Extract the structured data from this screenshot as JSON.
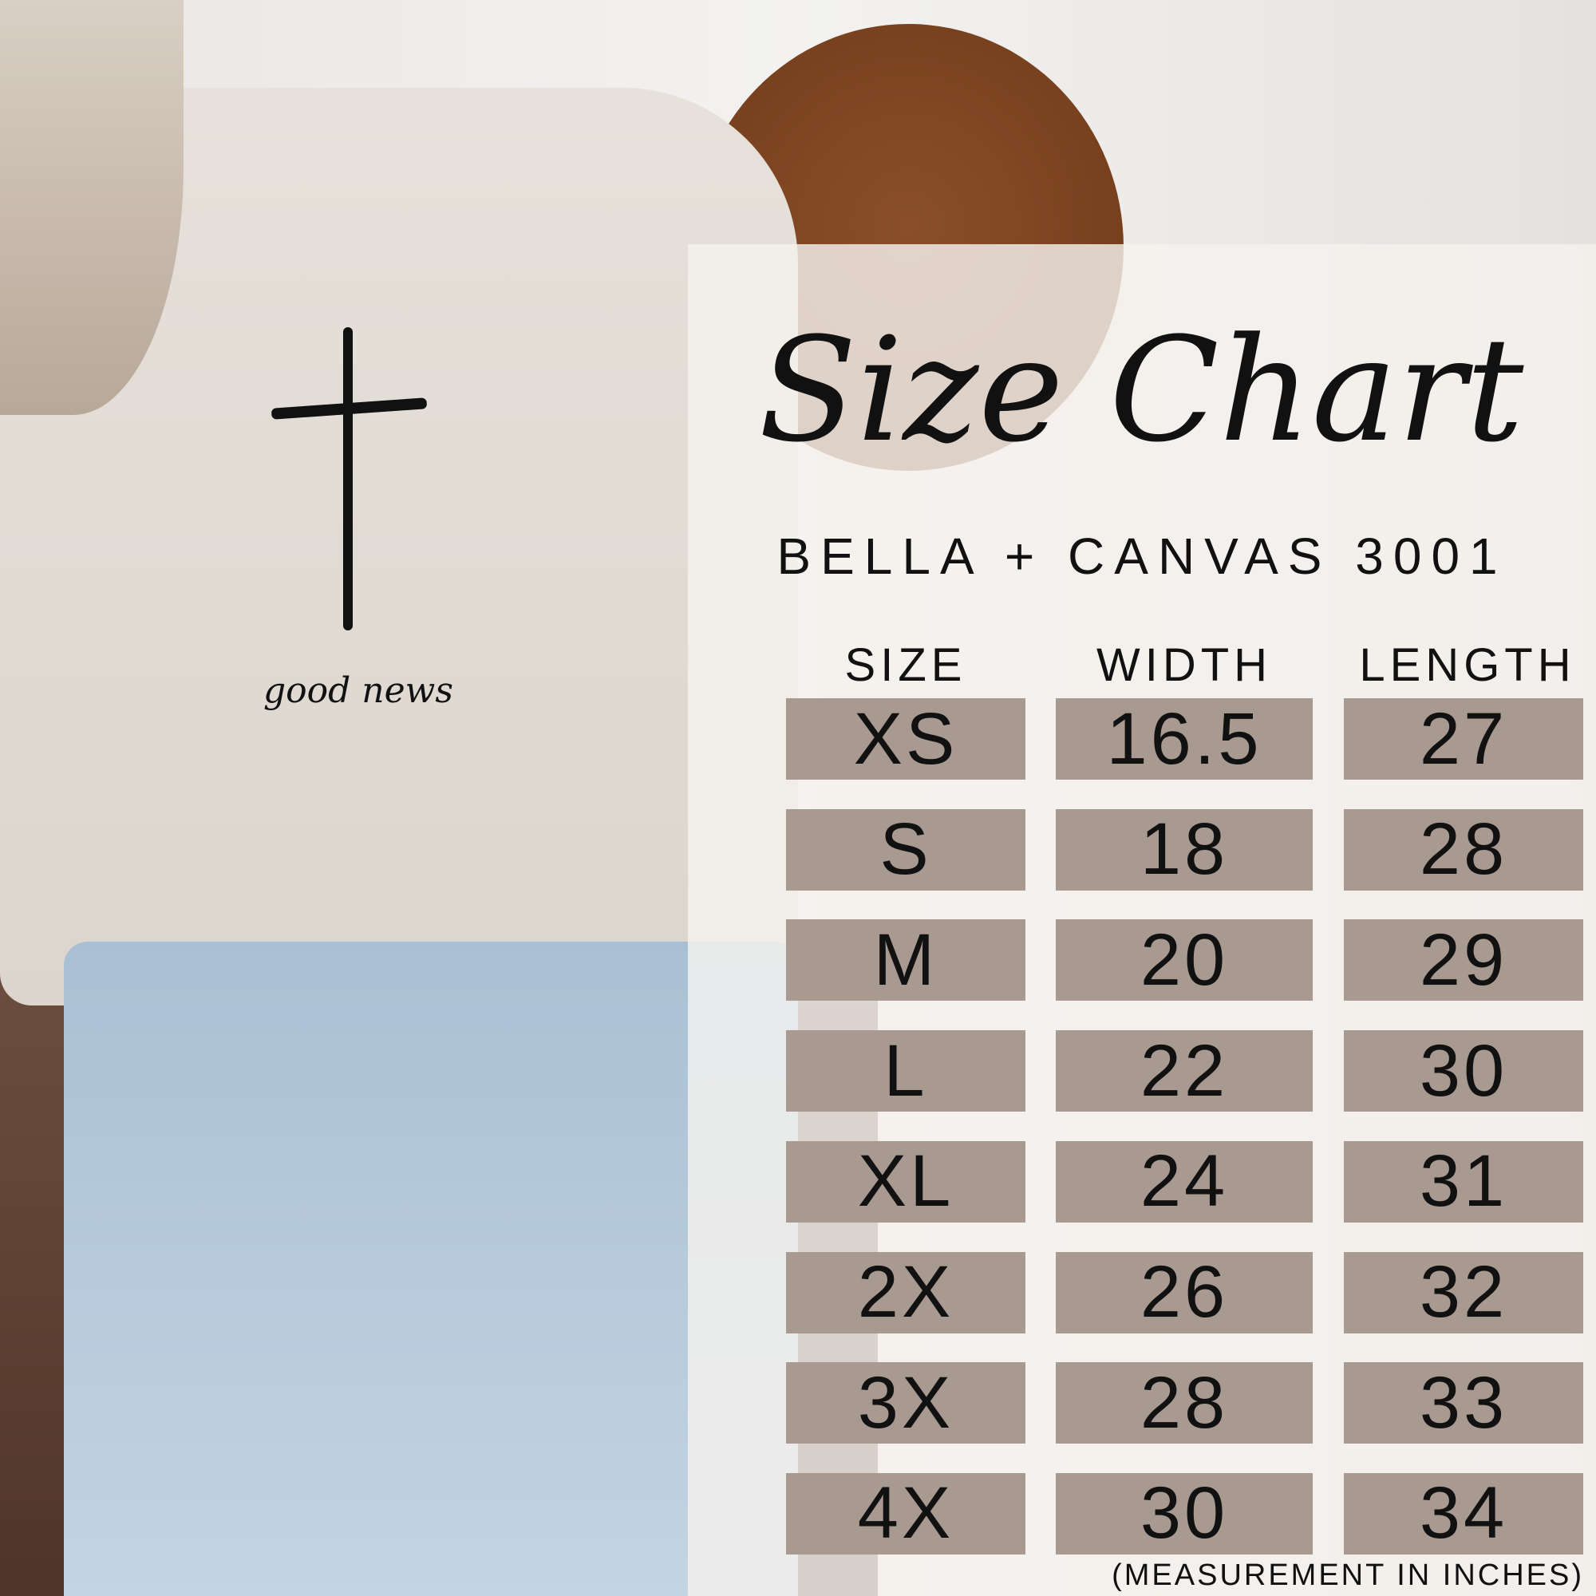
{
  "photo": {
    "shirt_print": "good news"
  },
  "title": "Size Chart",
  "brand": "BELLA + CANVAS 3001",
  "headers": [
    "SIZE",
    "WIDTH",
    "LENGTH"
  ],
  "rows": [
    {
      "size": "XS",
      "width": "16.5",
      "length": "27"
    },
    {
      "size": "S",
      "width": "18",
      "length": "28"
    },
    {
      "size": "M",
      "width": "20",
      "length": "29"
    },
    {
      "size": "L",
      "width": "22",
      "length": "30"
    },
    {
      "size": "XL",
      "width": "24",
      "length": "31"
    },
    {
      "size": "2X",
      "width": "26",
      "length": "32"
    },
    {
      "size": "3X",
      "width": "28",
      "length": "33"
    },
    {
      "size": "4X",
      "width": "30",
      "length": "34"
    }
  ],
  "footnote": "(MEASUREMENT IN INCHES)",
  "colors": {
    "cell": "#a89a90",
    "text": "#111111",
    "panel": "#f5f1ee"
  }
}
